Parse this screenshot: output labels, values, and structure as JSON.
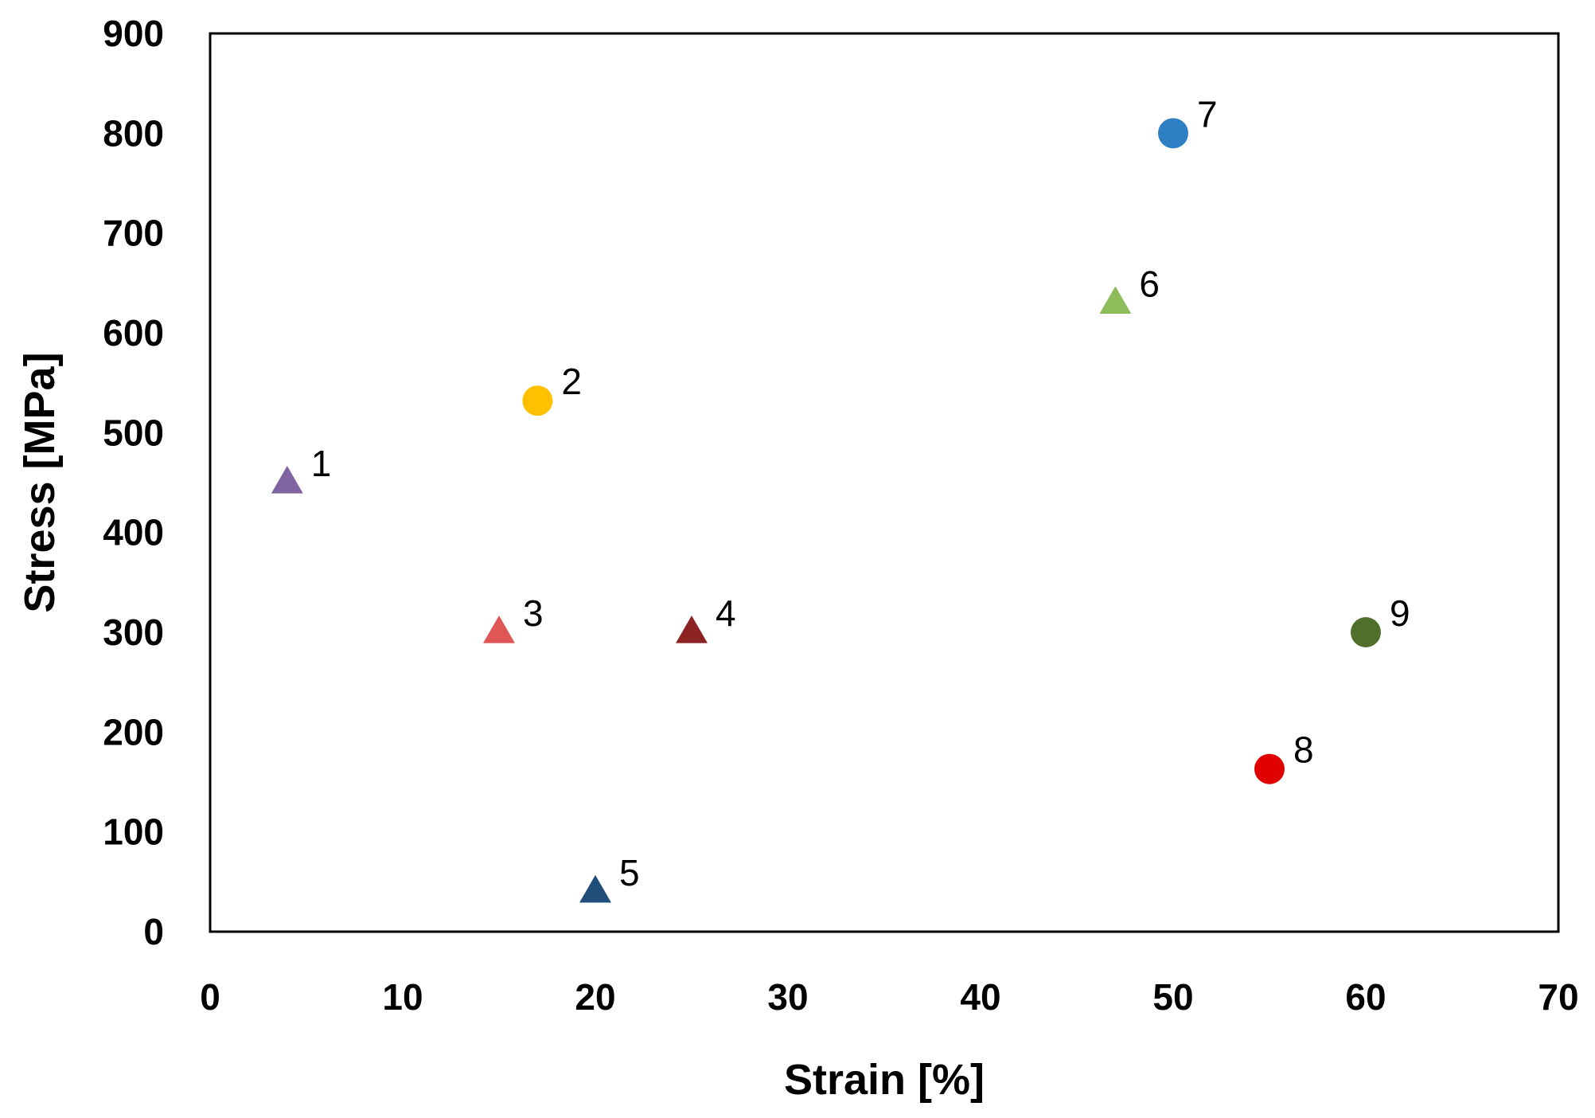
{
  "chart_data": {
    "type": "scatter",
    "title": "",
    "xlabel": "Strain [%]",
    "ylabel": "Stress [MPa]",
    "xlim": [
      0,
      70
    ],
    "ylim": [
      0,
      900
    ],
    "xticks": [
      "0",
      "10",
      "20",
      "30",
      "40",
      "50",
      "60",
      "70"
    ],
    "yticks": [
      "0",
      "100",
      "200",
      "300",
      "400",
      "500",
      "600",
      "700",
      "800",
      "900"
    ],
    "grid": false,
    "legend": "none",
    "points": [
      {
        "label": "1",
        "x": 4,
        "y": 450,
        "marker": "triangle",
        "color": "#8064a2"
      },
      {
        "label": "2",
        "x": 17,
        "y": 532,
        "marker": "circle",
        "color": "#ffc000"
      },
      {
        "label": "3",
        "x": 15,
        "y": 300,
        "marker": "triangle",
        "color": "#e05555"
      },
      {
        "label": "4",
        "x": 25,
        "y": 300,
        "marker": "triangle",
        "color": "#8b2323"
      },
      {
        "label": "5",
        "x": 20,
        "y": 40,
        "marker": "triangle",
        "color": "#1f4e79"
      },
      {
        "label": "6",
        "x": 47,
        "y": 630,
        "marker": "triangle",
        "color": "#8fbc5a"
      },
      {
        "label": "7",
        "x": 50,
        "y": 800,
        "marker": "circle",
        "color": "#2e7fc4"
      },
      {
        "label": "8",
        "x": 55,
        "y": 163,
        "marker": "circle",
        "color": "#e00000"
      },
      {
        "label": "9",
        "x": 60,
        "y": 300,
        "marker": "circle",
        "color": "#4f6f2a"
      }
    ]
  }
}
